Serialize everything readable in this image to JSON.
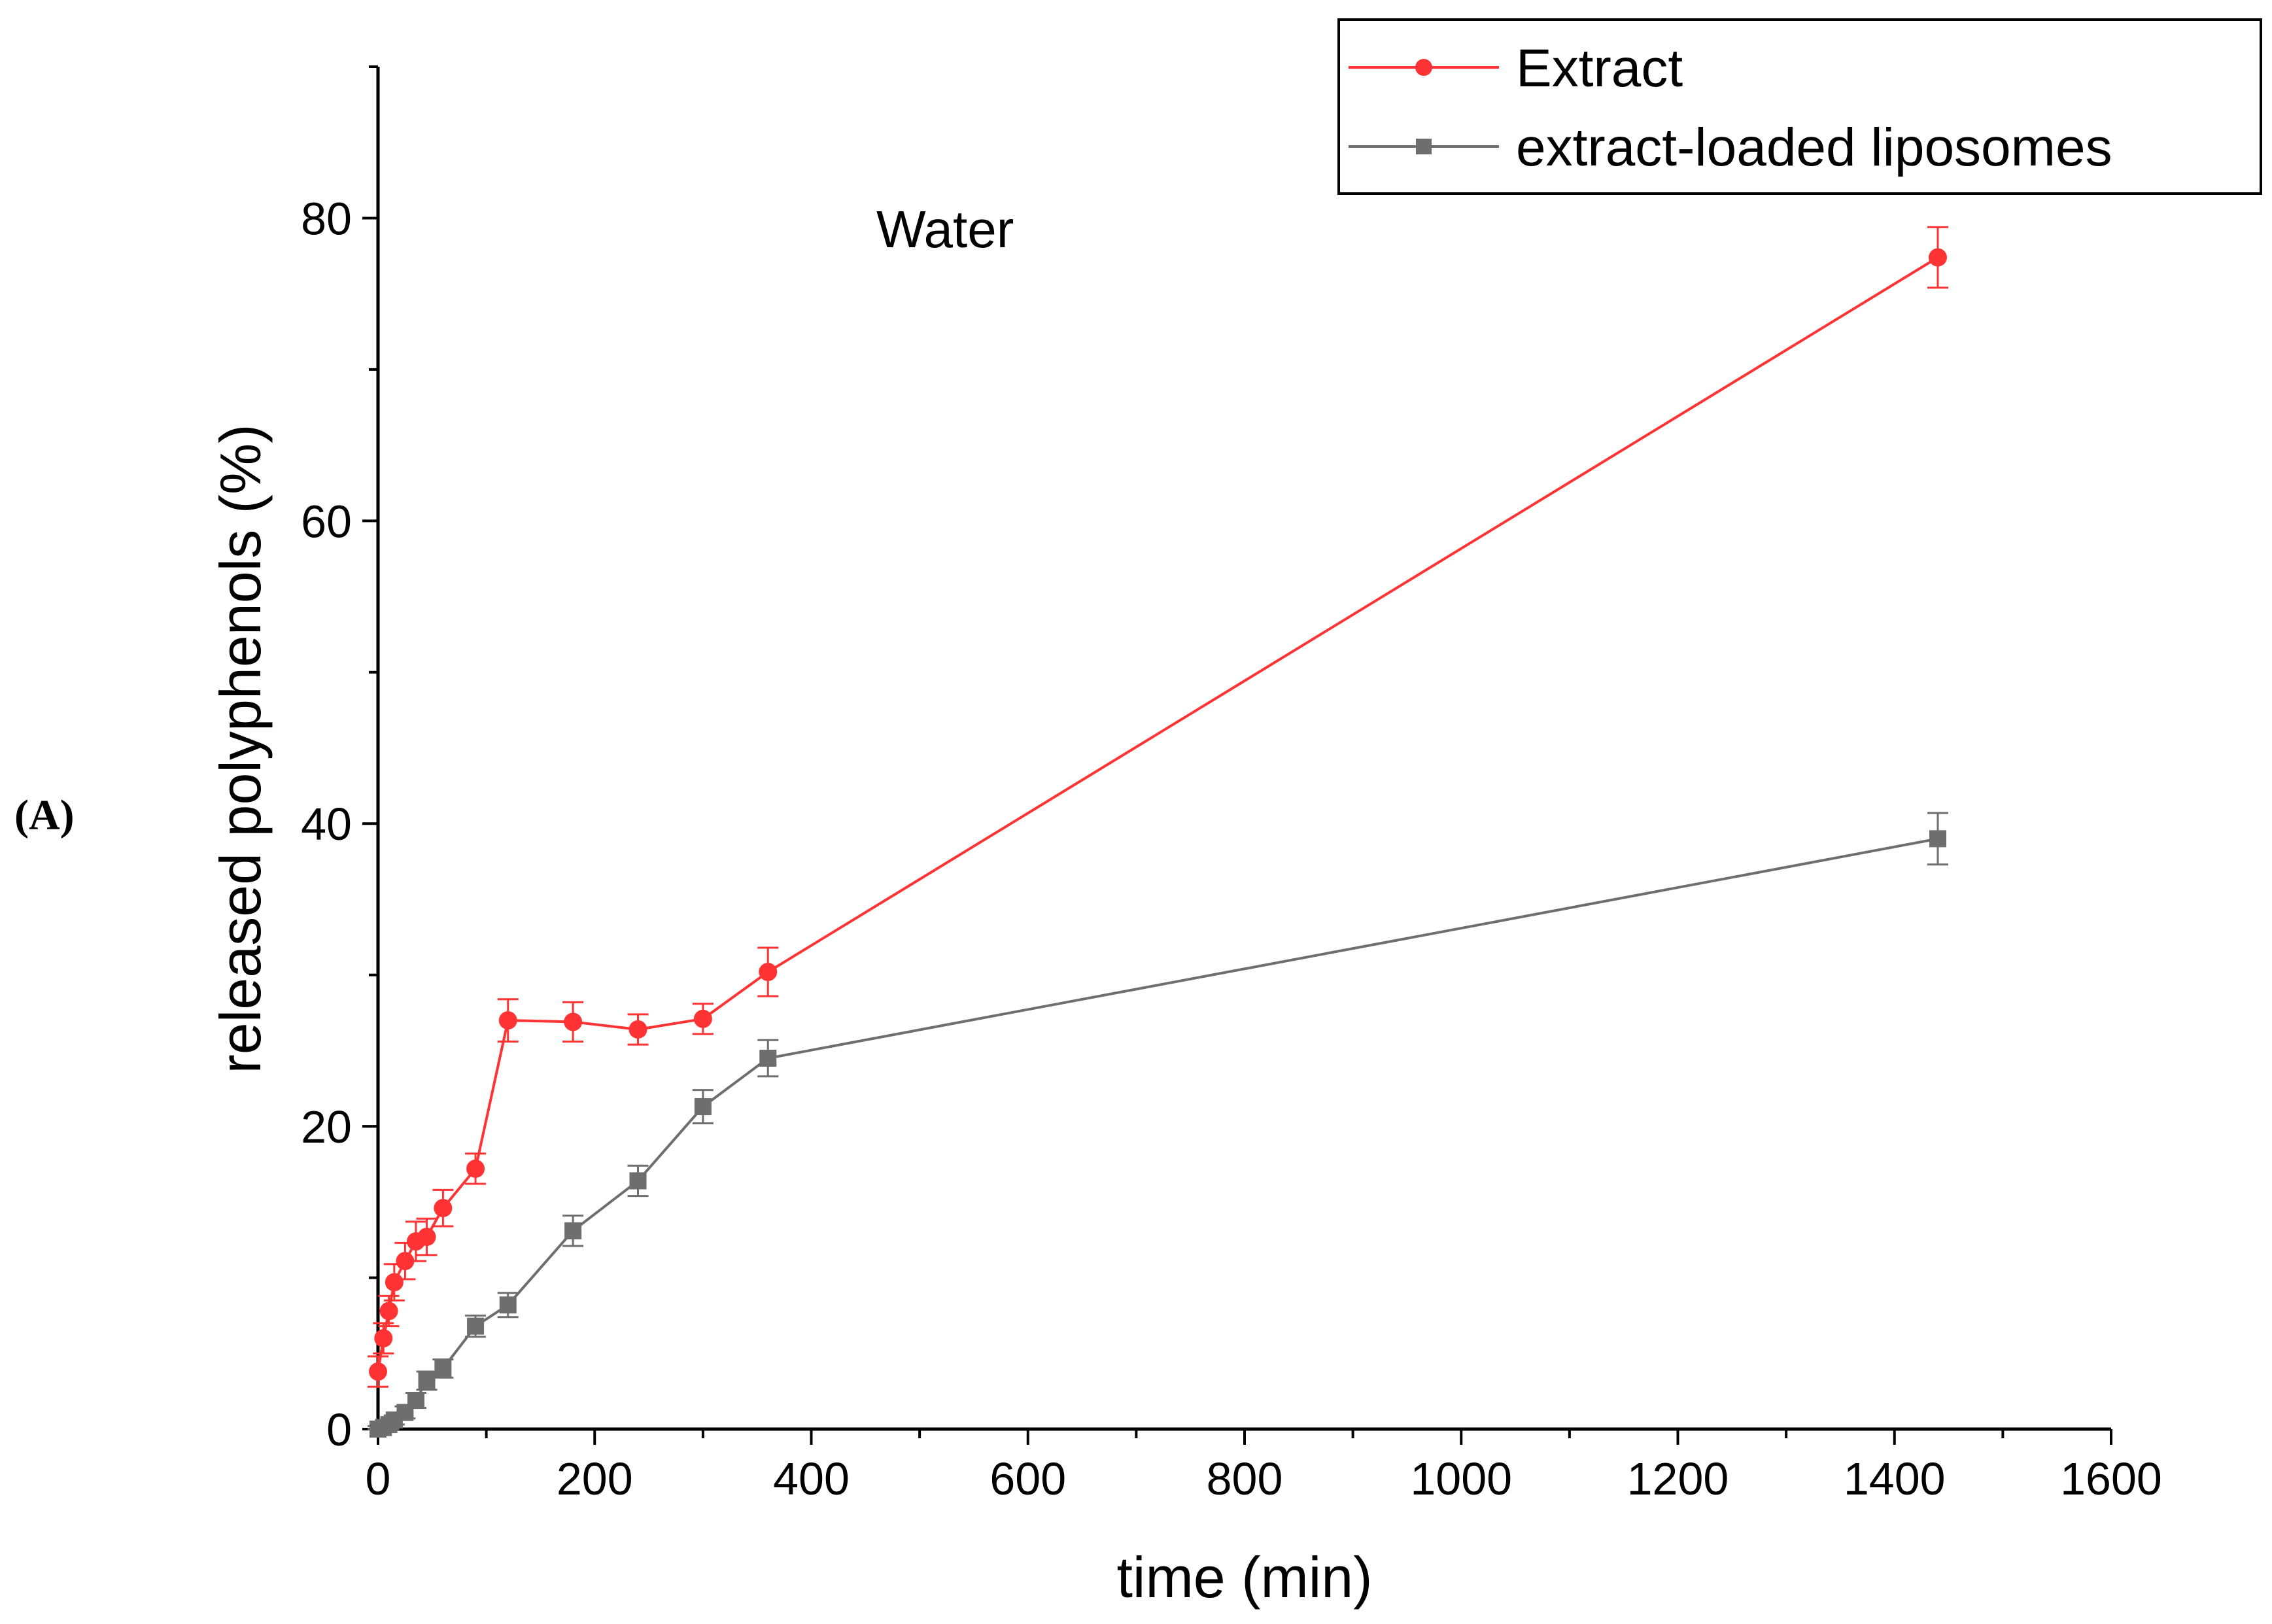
{
  "chart_data": {
    "type": "line",
    "panel_label": "(A)",
    "annotation": "Water",
    "xlabel": "time (min)",
    "ylabel": "released polyphenols (%)",
    "xlim": [
      0,
      1600
    ],
    "ylim": [
      0,
      90
    ],
    "xticks": [
      0,
      200,
      400,
      600,
      800,
      1000,
      1200,
      1400,
      1600
    ],
    "xtick_labels": [
      "0",
      "200",
      "400",
      "600",
      "800",
      "1000",
      "1200",
      "1400",
      "1600"
    ],
    "x_minor_step": 100,
    "yticks": [
      0,
      20,
      40,
      60,
      80
    ],
    "ytick_labels": [
      "0",
      "20",
      "40",
      "60",
      "80"
    ],
    "y_minor_step": 10,
    "legend_position": "top-right",
    "series": [
      {
        "name": "Extract",
        "color": "#ff3333",
        "marker": "circle",
        "x": [
          0,
          5,
          10,
          15,
          25,
          35,
          45,
          60,
          90,
          120,
          180,
          240,
          300,
          360,
          1440
        ],
        "y": [
          3.8,
          6.0,
          7.8,
          9.7,
          11.1,
          12.4,
          12.7,
          14.6,
          17.2,
          27.0,
          26.9,
          26.4,
          27.1,
          30.2,
          77.4
        ],
        "err": [
          1.0,
          1.0,
          1.0,
          1.2,
          1.2,
          1.3,
          1.2,
          1.2,
          1.0,
          1.4,
          1.3,
          1.0,
          1.0,
          1.6,
          2.0
        ]
      },
      {
        "name": "extract-loaded liposomes",
        "color": "#6e6e6e",
        "marker": "square",
        "x": [
          0,
          5,
          10,
          15,
          25,
          35,
          45,
          60,
          90,
          120,
          180,
          240,
          300,
          360,
          1440
        ],
        "y": [
          0,
          0.1,
          0.3,
          0.6,
          1.1,
          1.9,
          3.2,
          4.0,
          6.8,
          8.2,
          13.1,
          16.4,
          21.3,
          24.5,
          39.0
        ],
        "err": [
          0.2,
          0.2,
          0.3,
          0.3,
          0.4,
          0.5,
          0.6,
          0.6,
          0.7,
          0.8,
          1.0,
          1.0,
          1.1,
          1.2,
          1.7
        ]
      }
    ]
  }
}
